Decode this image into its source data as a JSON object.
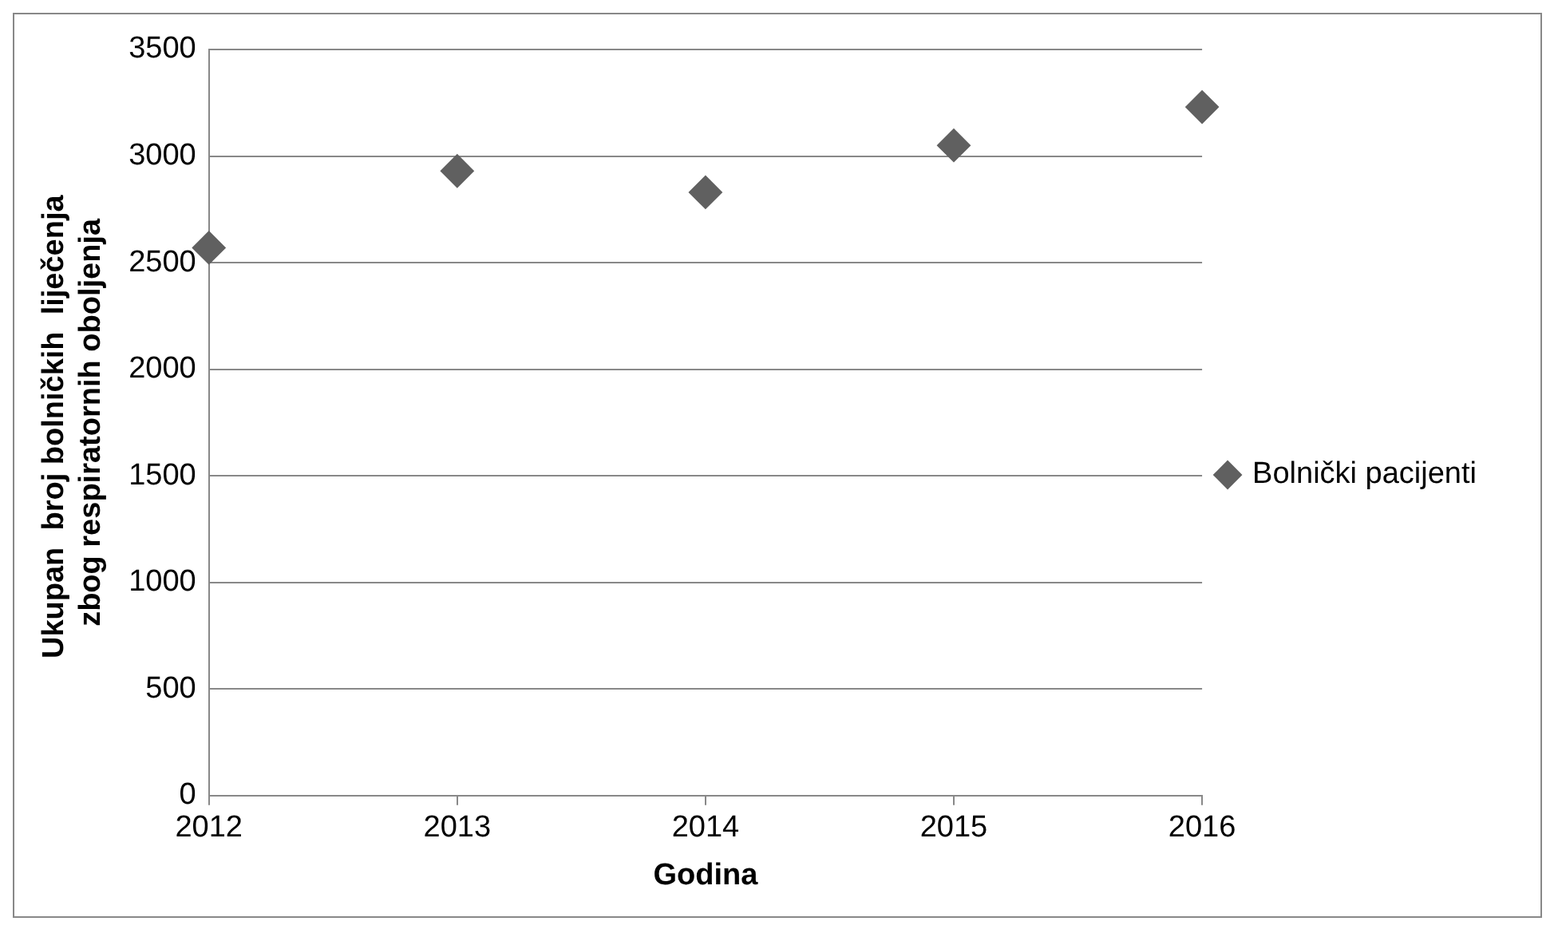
{
  "chart_data": {
    "type": "scatter",
    "xlabel": "Godina",
    "ylabel": "Ukupan  broj bolničkih  liječenja  zbog respiratornih oboljenja",
    "x": [
      2012,
      2013,
      2014,
      2015,
      2016
    ],
    "series": [
      {
        "name": "Bolnički pacijenti",
        "color": "#606060",
        "values": [
          2570,
          2930,
          2830,
          3050,
          3230
        ]
      }
    ],
    "xlim": [
      2012,
      2016
    ],
    "xticks": [
      2012,
      2013,
      2014,
      2015,
      2016
    ],
    "ylim": [
      0,
      3500
    ],
    "yticks": [
      0,
      500,
      1000,
      1500,
      2000,
      2500,
      3000,
      3500
    ],
    "grid": "y",
    "legend": "right",
    "marker": "diamond"
  }
}
